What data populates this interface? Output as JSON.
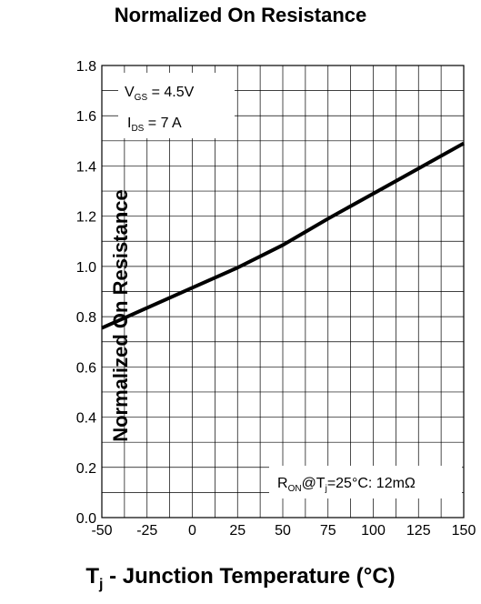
{
  "chart_data": {
    "type": "line",
    "title": "Normalized On Resistance",
    "ylabel": "Normalized On Resistance",
    "xlabel": {
      "symbol": "T",
      "subscript": "j",
      "text": " - Junction Temperature (°C)"
    },
    "xlim": [
      -50,
      150
    ],
    "ylim": [
      0.0,
      1.8
    ],
    "x_ticks": [
      -50,
      -25,
      0,
      25,
      50,
      75,
      100,
      125,
      150
    ],
    "y_ticks": [
      "0.0",
      "0.2",
      "0.4",
      "0.6",
      "0.8",
      "1.0",
      "1.2",
      "1.4",
      "1.6",
      "1.8"
    ],
    "grid": true,
    "series": [
      {
        "x": [
          -50,
          -25,
          0,
          25,
          50,
          75,
          100,
          125,
          150
        ],
        "y": [
          0.755,
          0.835,
          0.915,
          0.995,
          1.085,
          1.19,
          1.29,
          1.39,
          1.49
        ]
      }
    ],
    "annotations": {
      "vgs": {
        "symbol": "V",
        "subscript": "GS",
        "text": " = 4.5V"
      },
      "ids": {
        "symbol": "I",
        "subscript": "DS",
        "text": " = 7 A"
      },
      "ron": {
        "symbol": "R",
        "subscript": "ON",
        "mid": "@T",
        "mid_sub": "j",
        "tail": "=25°C: 12mΩ"
      }
    }
  }
}
